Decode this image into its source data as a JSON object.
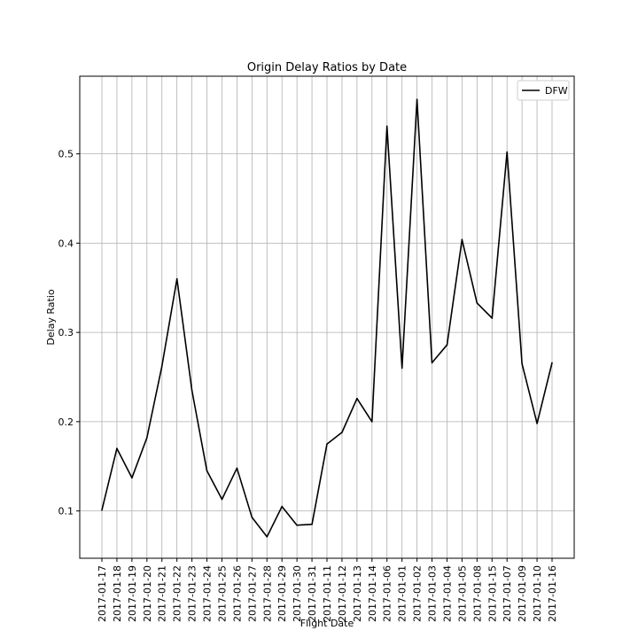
{
  "chart_data": {
    "type": "line",
    "title": "Origin Delay Ratios by Date",
    "xlabel": "Flight Date",
    "ylabel": "Delay Ratio",
    "categories": [
      "2017-01-17",
      "2017-01-18",
      "2017-01-19",
      "2017-01-20",
      "2017-01-21",
      "2017-01-22",
      "2017-01-23",
      "2017-01-24",
      "2017-01-25",
      "2017-01-26",
      "2017-01-27",
      "2017-01-28",
      "2017-01-29",
      "2017-01-30",
      "2017-01-31",
      "2017-01-11",
      "2017-01-12",
      "2017-01-13",
      "2017-01-14",
      "2017-01-06",
      "2017-01-01",
      "2017-01-02",
      "2017-01-03",
      "2017-01-04",
      "2017-01-05",
      "2017-01-08",
      "2017-01-15",
      "2017-01-07",
      "2017-01-09",
      "2017-01-10",
      "2017-01-16"
    ],
    "series": [
      {
        "name": "DFW",
        "color": "#000000",
        "values": [
          0.101,
          0.17,
          0.137,
          0.182,
          0.262,
          0.36,
          0.235,
          0.145,
          0.113,
          0.148,
          0.093,
          0.071,
          0.105,
          0.084,
          0.085,
          0.175,
          0.188,
          0.226,
          0.2,
          0.531,
          0.26,
          0.561,
          0.266,
          0.286,
          0.404,
          0.333,
          0.316,
          0.502,
          0.265,
          0.198,
          0.266
        ]
      }
    ],
    "yticks": [
      0.1,
      0.2,
      0.3,
      0.4,
      0.5
    ],
    "ylim": [
      0.047,
      0.587
    ],
    "grid": true,
    "legend_position": "top-right"
  }
}
